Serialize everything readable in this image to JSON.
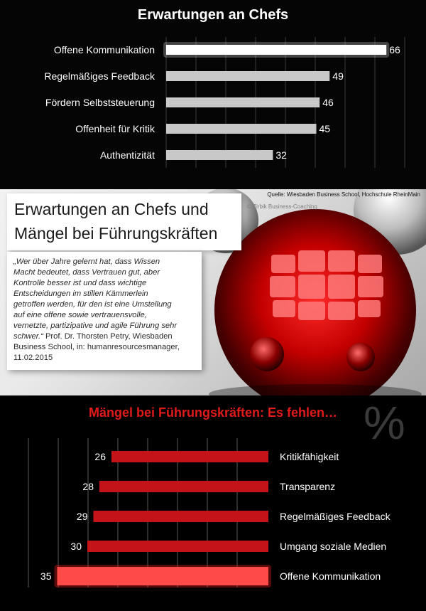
{
  "top": {
    "title": "Erwartungen an Chefs",
    "source": "Quelle: Wiesbaden Business School, Hochschule RheinMain"
  },
  "middle": {
    "copyright": "© Zirbik Business-Coaching",
    "headline_line1": "Erwartungen an Chefs und",
    "headline_line2": "Mängel bei Führungskräften",
    "quote_lines": [
      "„Wer über Jahre gelernt hat, dass Wissen",
      "Macht bedeutet, dass Vertrauen gut, aber",
      "Kontrolle besser ist und dass wichtige",
      "Entscheidungen im stillen Kämmerlein",
      "getroffen werden, für den ist eine Umstellung",
      "auf eine offene sowie vertrauensvolle,",
      "vernetzte, partizipative und agile Führung sehr",
      "schwer.“",
      "Business School, in: humanresourcesmanager,",
      "11.02.2015"
    ],
    "quote_author": " Prof. Dr. Thorsten Petry, Wiesbaden"
  },
  "bottom": {
    "title": "Mängel bei Führungskräften: Es fehlen…",
    "percent_symbol": "%"
  },
  "colors": {
    "top_bar": "#c8c8c8",
    "top_bar_highlight": "#ffffff",
    "bottom_bar": "#c4141a",
    "bottom_bar_highlight": "#ff4a4a"
  },
  "chart_data": [
    {
      "type": "bar",
      "orientation": "horizontal",
      "title": "Erwartungen an Chefs",
      "categories": [
        "Offene Kommunikation",
        "Regelmäßiges Feedback",
        "Fördern Selbststeuerung",
        "Offenheit für Kritik",
        "Authentizität"
      ],
      "values": [
        66,
        49,
        46,
        45,
        32
      ],
      "grid": true
    },
    {
      "type": "bar",
      "orientation": "horizontal",
      "direction": "right-to-left",
      "title": "Mängel bei Führungskräften: Es fehlen…",
      "categories": [
        "Kritikfähigkeit",
        "Transparenz",
        "Regelmäßiges Feedback",
        "Umgang soziale Medien",
        "Offene Kommunikation"
      ],
      "values": [
        26,
        28,
        29,
        30,
        35
      ],
      "unit": "%",
      "grid": true
    }
  ]
}
